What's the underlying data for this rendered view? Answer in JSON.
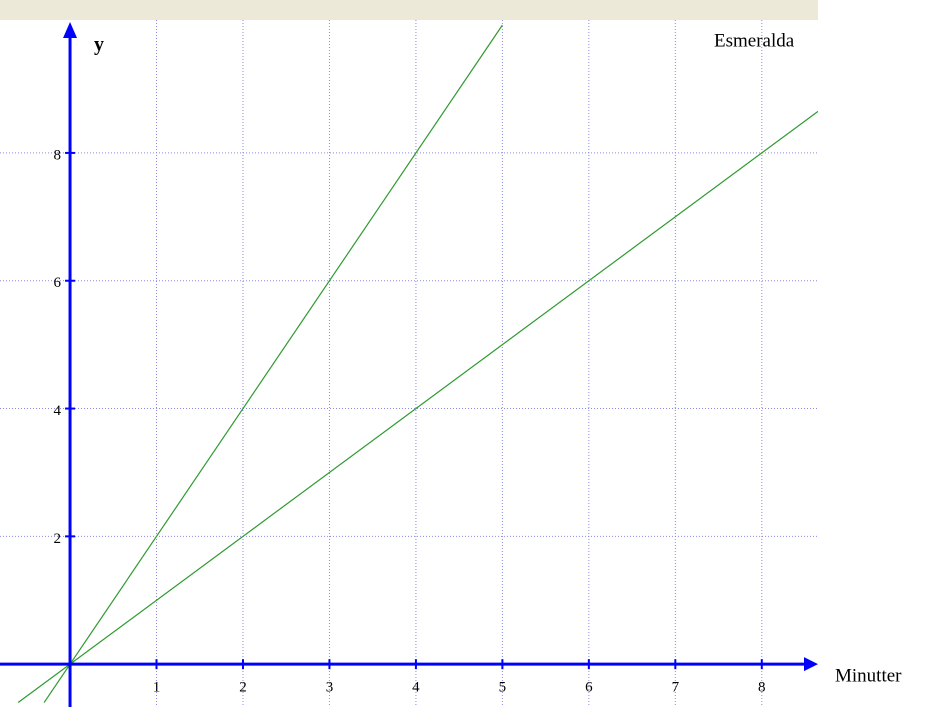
{
  "chart_data": {
    "type": "line",
    "annotation": "Esmeralda",
    "x_label": "Minutter",
    "y_label": "y",
    "xlim": [
      -0.81,
      8.65
    ],
    "ylim": [
      -0.67,
      10.08
    ],
    "xticks": [
      1,
      2,
      3,
      4,
      5,
      6,
      7,
      8
    ],
    "yticks": [
      2,
      4,
      6,
      8
    ],
    "grid": true,
    "series": [
      {
        "color": "#2f9a2f",
        "x": [
          -0.3,
          5
        ],
        "values": [
          -0.6,
          10
        ]
      },
      {
        "color": "#2f9a2f",
        "x": [
          -0.6,
          8.65
        ],
        "values": [
          -0.6,
          8.65
        ]
      }
    ]
  }
}
